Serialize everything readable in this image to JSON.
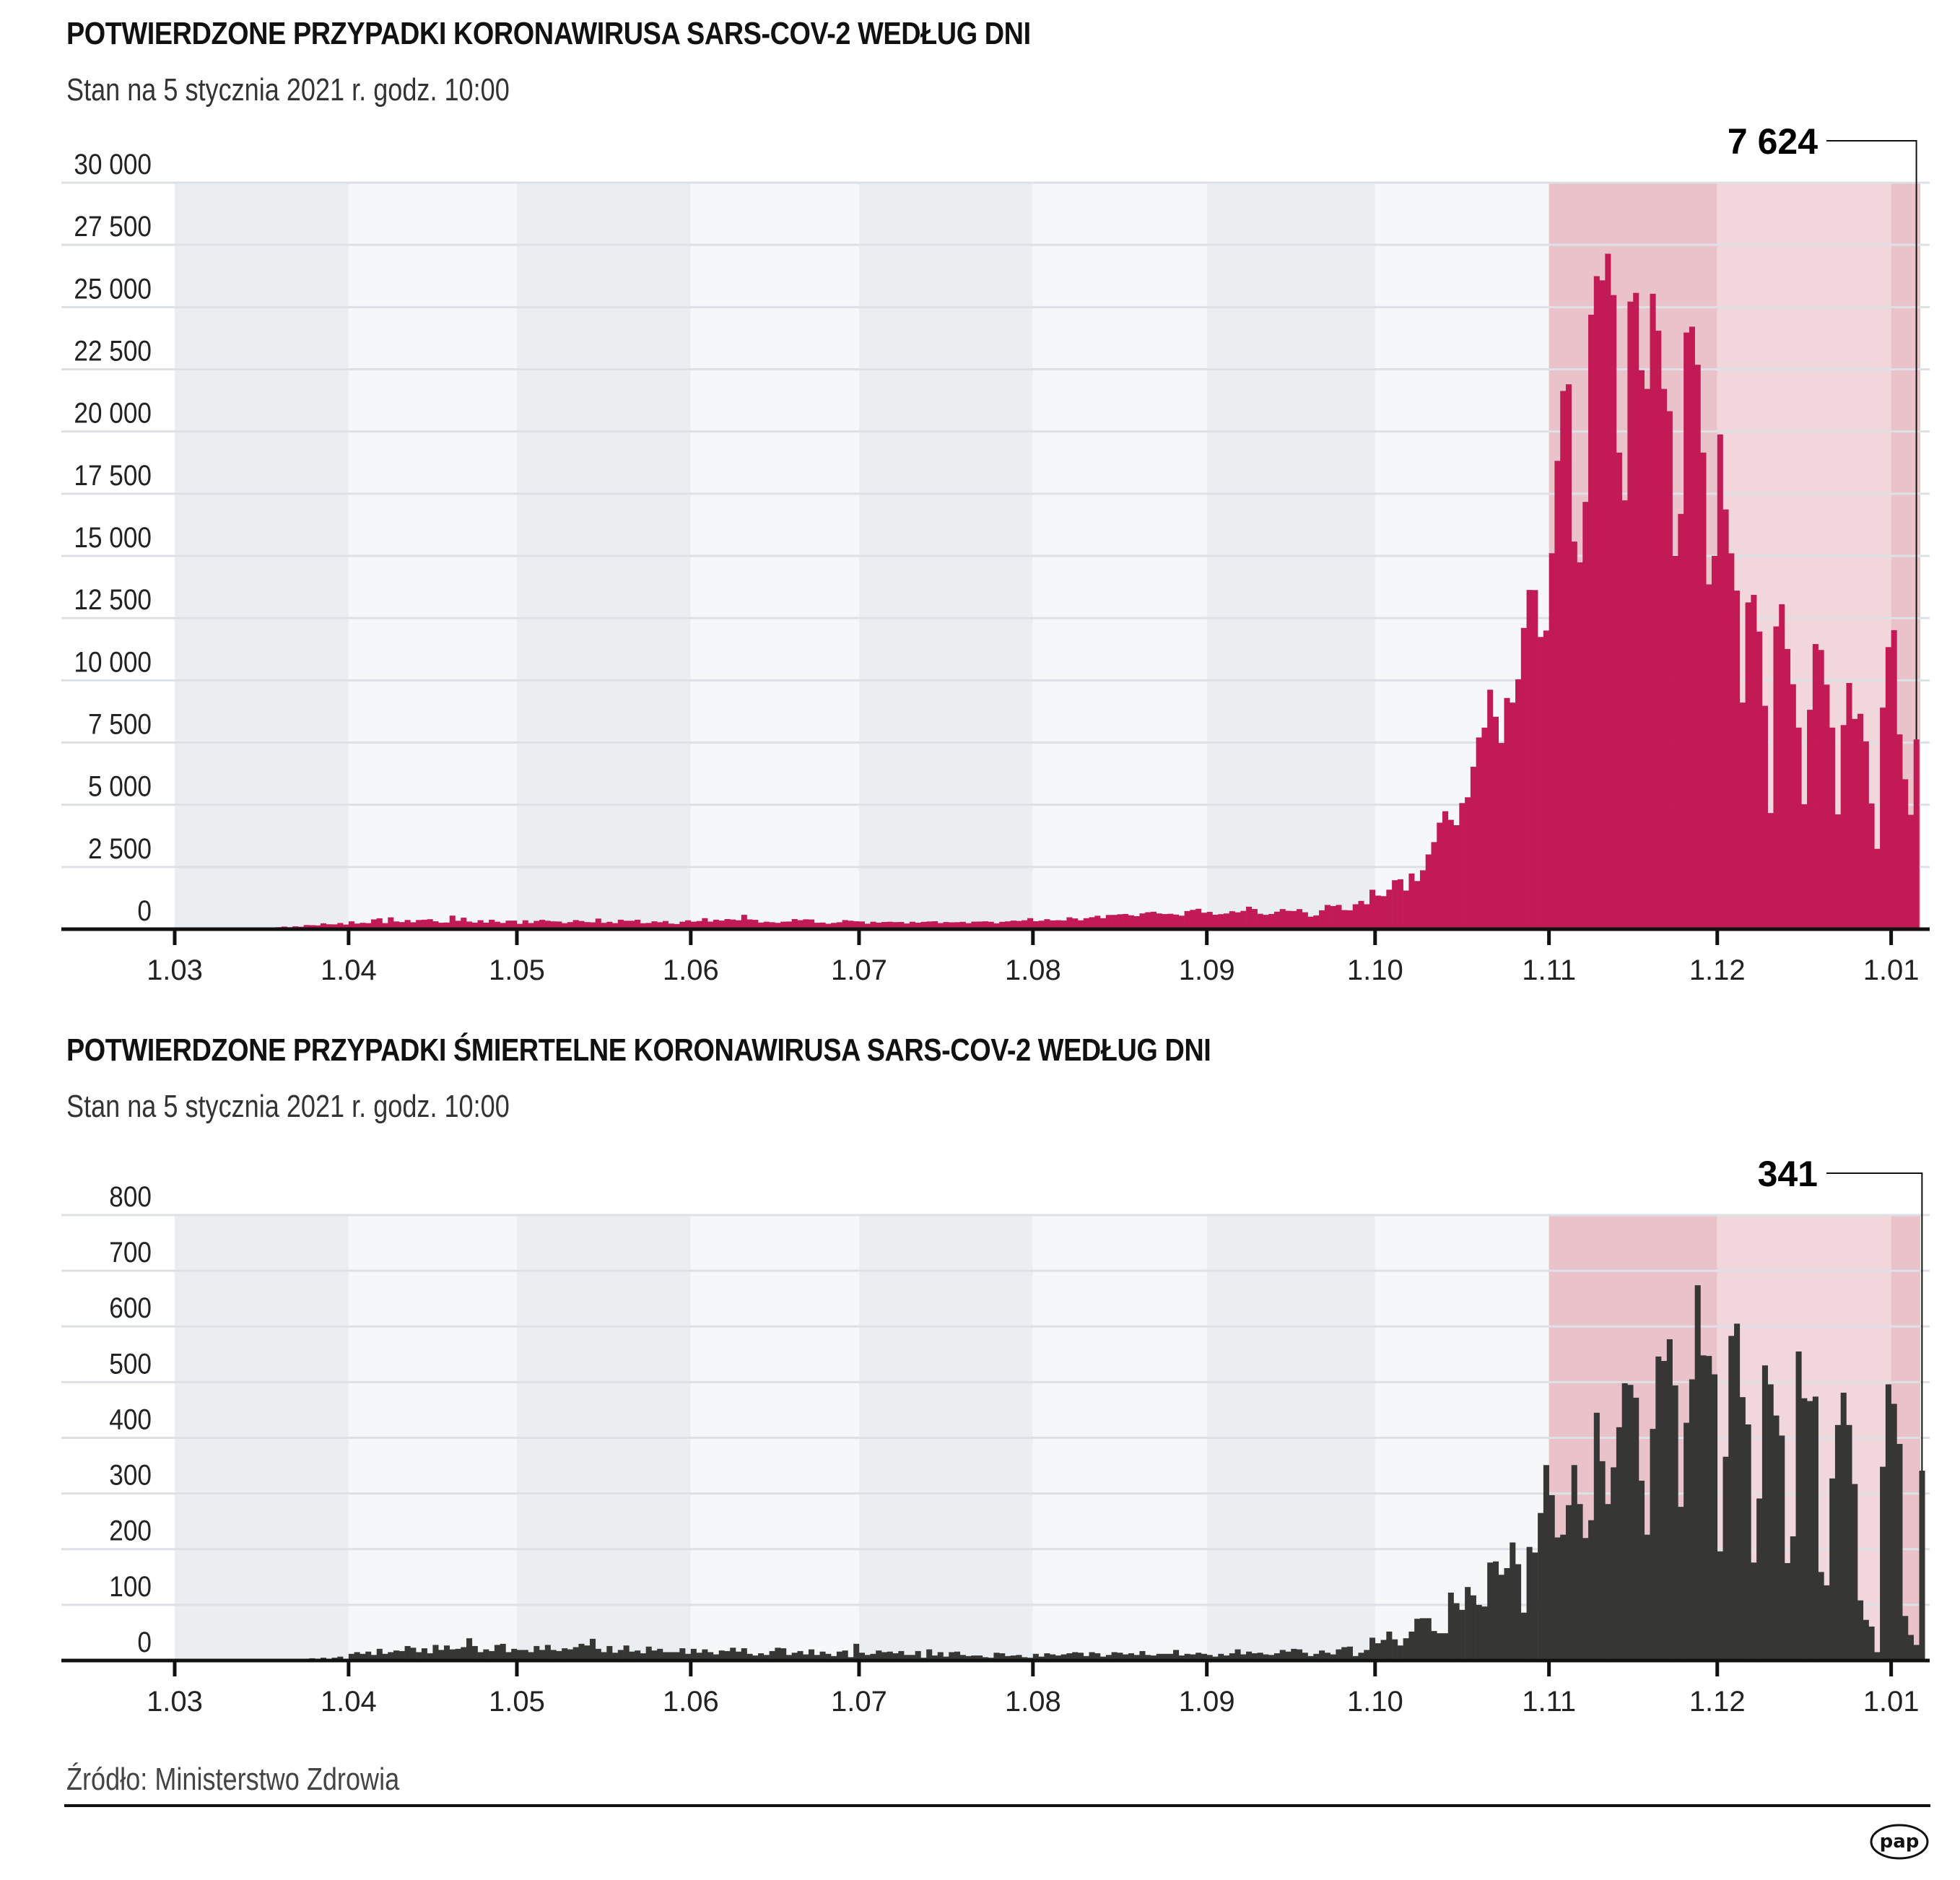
{
  "footer": {
    "source": "Źródło: Ministerstwo Zdrowia",
    "logo_text": "pap"
  },
  "colors": {
    "cases_bar": "#c21a55",
    "deaths_bar": "#363634",
    "band_dark": "#ebeef1",
    "band_light": "#f6f7f9",
    "band_pink_dark": "#e9c3c9",
    "band_pink_light": "#f1d6db",
    "gridline": "#dde1e5",
    "axis": "#111111"
  },
  "chart_data": [
    {
      "type": "bar",
      "id": "cases",
      "title": "POTWIERDZONE PRZYPADKI KORONAWIRUSA SARS-COV-2 WEDŁUG DNI",
      "subtitle": "Stan na 5 stycznia 2021 r. godz. 10:00",
      "xlabel": "",
      "ylabel": "",
      "ylim": [
        0,
        30000
      ],
      "yticks": [
        0,
        2500,
        5000,
        7500,
        10000,
        12500,
        15000,
        17500,
        20000,
        22500,
        25000,
        27500,
        30000
      ],
      "ytick_labels": [
        "0",
        "2 500",
        "5 000",
        "7 500",
        "10 000",
        "12 500",
        "15 000",
        "17 500",
        "20 000",
        "22 500",
        "25 000",
        "27 500",
        "30 000"
      ],
      "xtick_labels": [
        "1.03",
        "1.04",
        "1.05",
        "1.06",
        "1.07",
        "1.08",
        "1.09",
        "1.10",
        "1.11",
        "1.12",
        "1.01"
      ],
      "x_start": "2020-03-04",
      "x_end": "2021-01-05",
      "grid": true,
      "last_value_label": "7 624",
      "last_value": 7624,
      "series": [
        {
          "name": "Potwierdzone przypadki",
          "values": [
            1,
            0,
            4,
            1,
            5,
            6,
            5,
            9,
            17,
            21,
            39,
            35,
            50,
            55,
            70,
            80,
            104,
            80,
            115,
            98,
            166,
            161,
            152,
            235,
            196,
            193,
            249,
            185,
            314,
            225,
            256,
            243,
            392,
            437,
            244,
            475,
            311,
            285,
            370,
            278,
            368,
            380,
            401,
            318,
            260,
            268,
            545,
            336,
            461,
            306,
            263,
            360,
            263,
            380,
            301,
            250,
            344,
            345,
            215,
            357,
            247,
            333,
            376,
            338,
            314,
            307,
            242,
            285,
            366,
            329,
            285,
            275,
            426,
            255,
            297,
            243,
            380,
            337,
            337,
            380,
            239,
            250,
            316,
            279,
            329,
            225,
            207,
            301,
            357,
            303,
            328,
            443,
            304,
            379,
            345,
            407,
            388,
            359,
            577,
            392,
            375,
            266,
            301,
            279,
            254,
            301,
            308,
            407,
            361,
            396,
            390,
            258,
            266,
            218,
            252,
            278,
            366,
            340,
            318,
            310,
            220,
            299,
            262,
            289,
            299,
            284,
            290,
            228,
            299,
            261,
            293,
            308,
            318,
            246,
            286,
            275,
            280,
            296,
            242,
            303,
            306,
            316,
            298,
            235,
            296,
            314,
            345,
            330,
            358,
            443,
            320,
            341,
            402,
            350,
            361,
            348,
            477,
            432,
            357,
            441,
            481,
            540,
            442,
            571,
            573,
            599,
            611,
            557,
            522,
            633,
            681,
            700,
            632,
            608,
            620,
            587,
            542,
            729,
            775,
            820,
            662,
            695,
            580,
            604,
            631,
            722,
            676,
            735,
            903,
            811,
            619,
            577,
            612,
            703,
            808,
            738,
            731,
            806,
            679,
            503,
            550,
            759,
            974,
            929,
            975,
            766,
            758,
            1002,
            1136,
            1002,
            1584,
            1350,
            1326,
            1587,
            1967,
            2006,
            1552,
            2236,
            1934,
            2367,
            3003,
            3499,
            4280,
            4739,
            4394,
            4178,
            5068,
            5300,
            6526,
            7705,
            8099,
            9622,
            8536,
            7482,
            9291,
            9105,
            10040,
            12107,
            13632,
            13628,
            11742,
            12001,
            15108,
            18820,
            21629,
            21897,
            15578,
            14739,
            17171,
            24692,
            26242,
            26074,
            27143,
            25484,
            19152,
            17232,
            25221,
            25571,
            22464,
            21713,
            25535,
            24051,
            21712,
            20816,
            15002,
            16687,
            23975,
            24213,
            22683,
            19152,
            13855,
            15002,
            19883,
            16867,
            15104,
            13606,
            9105,
            13130,
            13435,
            11960,
            8977,
            4666,
            12167,
            13058,
            11260,
            9844,
            8101,
            5022,
            8816,
            11458,
            11220,
            9828,
            8100,
            4612,
            8201,
            9893,
            8450,
            8655,
            7548,
            5053,
            3229,
            8904,
            11335,
            12015,
            7828,
            6024,
            4597,
            7624
          ]
        }
      ]
    },
    {
      "type": "bar",
      "id": "deaths",
      "title": "POTWIERDZONE PRZYPADKI ŚMIERTELNE KORONAWIRUSA SARS-COV-2 WEDŁUG DNI",
      "subtitle": "Stan na 5 stycznia 2021 r. godz. 10:00",
      "xlabel": "",
      "ylabel": "",
      "ylim": [
        0,
        800
      ],
      "yticks": [
        0,
        100,
        200,
        300,
        400,
        500,
        600,
        700,
        800
      ],
      "ytick_labels": [
        "0",
        "100",
        "200",
        "300",
        "400",
        "500",
        "600",
        "700",
        "800"
      ],
      "xtick_labels": [
        "1.03",
        "1.04",
        "1.05",
        "1.06",
        "1.07",
        "1.08",
        "1.09",
        "1.10",
        "1.11",
        "1.12",
        "1.01"
      ],
      "x_start": "2020-03-04",
      "x_end": "2021-01-05",
      "grid": true,
      "last_value_label": "341",
      "last_value": 341,
      "series": [
        {
          "name": "Przypadki śmiertelne",
          "values": [
            0,
            0,
            0,
            0,
            0,
            0,
            0,
            0,
            1,
            1,
            1,
            0,
            2,
            1,
            1,
            2,
            1,
            2,
            3,
            3,
            2,
            4,
            2,
            5,
            3,
            5,
            7,
            2,
            12,
            15,
            12,
            16,
            10,
            21,
            12,
            15,
            18,
            17,
            26,
            23,
            15,
            22,
            13,
            28,
            19,
            27,
            20,
            21,
            24,
            40,
            26,
            15,
            20,
            17,
            28,
            30,
            15,
            21,
            19,
            19,
            15,
            26,
            19,
            28,
            19,
            17,
            22,
            20,
            24,
            30,
            27,
            39,
            21,
            15,
            26,
            14,
            19,
            27,
            16,
            18,
            13,
            25,
            18,
            21,
            15,
            15,
            15,
            22,
            12,
            21,
            14,
            20,
            15,
            11,
            18,
            17,
            23,
            16,
            22,
            12,
            9,
            13,
            10,
            17,
            23,
            22,
            10,
            14,
            17,
            11,
            20,
            10,
            16,
            12,
            8,
            16,
            18,
            6,
            30,
            14,
            10,
            12,
            18,
            15,
            16,
            13,
            17,
            10,
            10,
            17,
            5,
            20,
            9,
            15,
            7,
            15,
            16,
            10,
            8,
            9,
            9,
            6,
            5,
            14,
            13,
            8,
            9,
            10,
            6,
            5,
            12,
            7,
            13,
            11,
            9,
            11,
            13,
            15,
            14,
            8,
            15,
            13,
            7,
            10,
            15,
            14,
            11,
            13,
            10,
            17,
            10,
            9,
            12,
            12,
            12,
            19,
            9,
            12,
            11,
            14,
            12,
            10,
            7,
            12,
            9,
            13,
            20,
            11,
            16,
            13,
            14,
            11,
            10,
            13,
            19,
            16,
            21,
            20,
            14,
            8,
            12,
            18,
            14,
            11,
            20,
            24,
            25,
            8,
            14,
            19,
            41,
            31,
            37,
            52,
            38,
            27,
            40,
            52,
            75,
            76,
            76,
            53,
            49,
            49,
            122,
            103,
            91,
            132,
            117,
            100,
            97,
            176,
            178,
            154,
            166,
            212,
            173,
            86,
            204,
            194,
            265,
            351,
            297,
            221,
            226,
            279,
            351,
            281,
            220,
            252,
            445,
            358,
            281,
            347,
            419,
            498,
            495,
            472,
            323,
            226,
            416,
            546,
            538,
            577,
            494,
            276,
            427,
            505,
            674,
            548,
            547,
            514,
            196,
            366,
            583,
            605,
            473,
            424,
            176,
            291,
            530,
            496,
            440,
            404,
            175,
            223,
            555,
            471,
            466,
            474,
            159,
            135,
            327,
            423,
            481,
            423,
            317,
            108,
            73,
            61,
            15,
            348,
            496,
            461,
            389,
            80,
            46,
            28,
            341
          ]
        }
      ]
    }
  ]
}
